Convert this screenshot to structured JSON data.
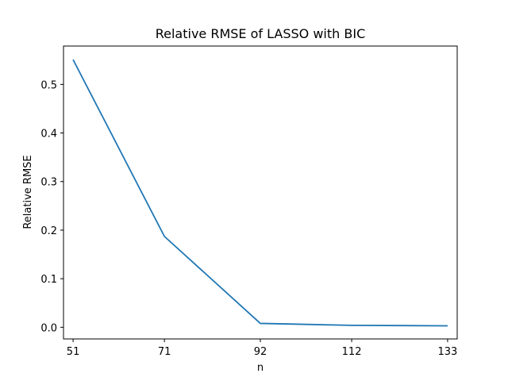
{
  "chart_data": {
    "type": "line",
    "title": "Relative RMSE of LASSO with BIC",
    "xlabel": "n",
    "ylabel": "Relative RMSE",
    "x": [
      51,
      71,
      92,
      112,
      133
    ],
    "xticks": [
      "51",
      "71",
      "92",
      "112",
      "133"
    ],
    "series": [
      {
        "values": [
          0.551,
          0.187,
          0.008,
          0.004,
          0.003
        ],
        "color": "#1f77b4"
      }
    ],
    "ylim": [
      -0.024,
      0.579
    ],
    "yticks": [
      0.0,
      0.1,
      0.2,
      0.3,
      0.4,
      0.5
    ],
    "ytick_labels": [
      "0.0",
      "0.1",
      "0.2",
      "0.3",
      "0.4",
      "0.5"
    ],
    "grid": false,
    "legend": "none"
  }
}
